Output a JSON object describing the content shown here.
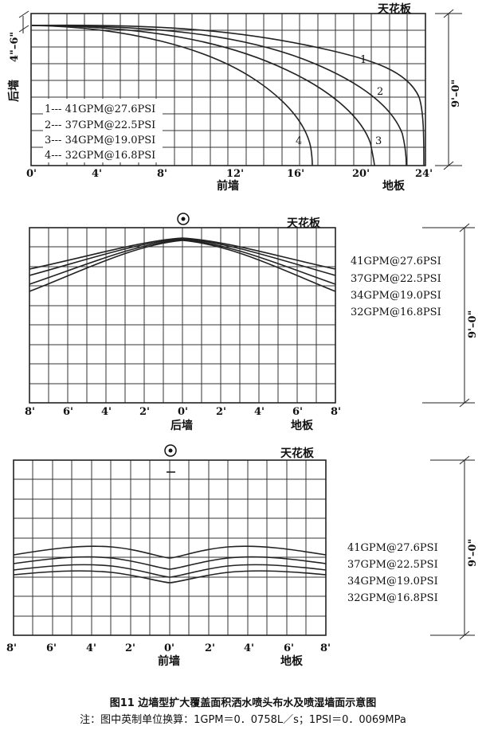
{
  "panel1": {
    "ceiling_label": "天花板",
    "back_wall_label": "后墙",
    "front_wall_label": "前墙",
    "floor_label": "地板",
    "height_label": "9'–0\"",
    "offset_label": "4\"–6\"",
    "x_ticks": [
      "0'",
      "4'",
      "8'",
      "12'",
      "16'",
      "20'",
      "24'"
    ],
    "curve_numbers": [
      "1",
      "2",
      "3",
      "4"
    ],
    "legend": [
      "1--- 41GPM@27.6PSI",
      "2--- 37GPM@22.5PSI",
      "3--- 34GPM@19.0PSI",
      "4--- 32GPM@16.8PSI"
    ]
  },
  "panel2": {
    "ceiling_label": "天花板",
    "wall_label": "后墙",
    "floor_label": "地板",
    "height_label": "9'–0\"",
    "x_ticks": [
      "8'",
      "6'",
      "4'",
      "2'",
      "0'",
      "2'",
      "4'",
      "6'",
      "8'"
    ],
    "legend": [
      "41GPM@27.6PSI",
      "37GPM@22.5PSI",
      "34GPM@19.0PSI",
      "32GPM@16.8PSI"
    ]
  },
  "panel3": {
    "ceiling_label": "天花板",
    "wall_label": "前墙",
    "floor_label": "地板",
    "height_label": "9'–0\"",
    "x_ticks": [
      "8'",
      "6'",
      "4'",
      "2'",
      "0'",
      "2'",
      "4'",
      "6'",
      "8'"
    ],
    "legend": [
      "41GPM@27.6PSI",
      "37GPM@22.5PSI",
      "34GPM@19.0PSI",
      "32GPM@16.8PSI"
    ]
  },
  "caption": "图11 边墙型扩大覆盖面积洒水喷头布水及喷湿墙面示意图",
  "note": "注：图中英制单位换算：1GPM＝0．0758L／s；1PSI＝0．0069MPa"
}
